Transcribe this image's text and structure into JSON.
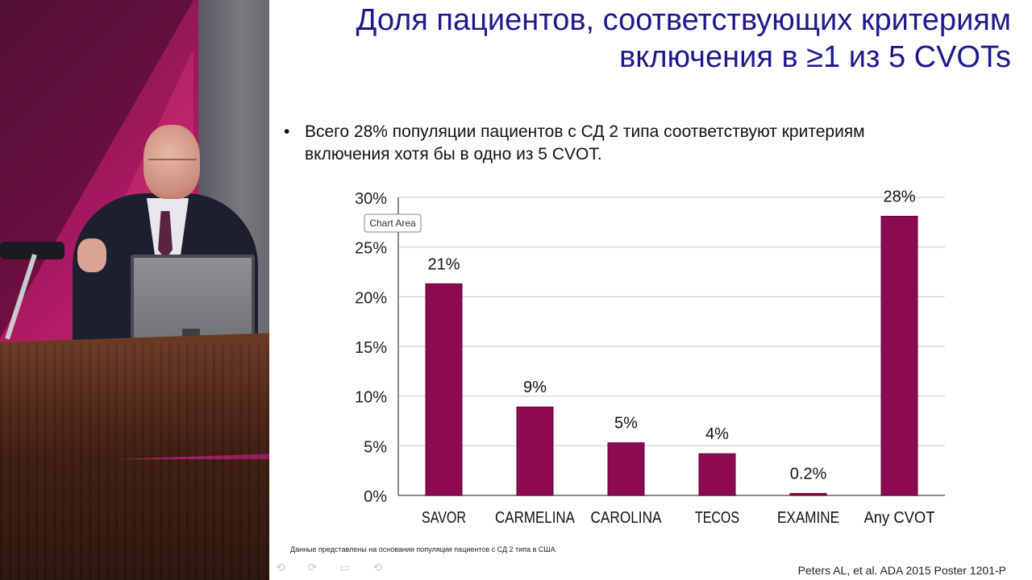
{
  "slide": {
    "title_line1": "Доля пациентов, соответствующих критериям",
    "title_line2": "включения в ≥1 из 5 CVOTs",
    "bullet_marker": "•",
    "bullet_text_line1": "Всего 28% популяции пациентов с СД 2 типа соответствуют критериям",
    "bullet_text_line2": "включения хотя бы в одно  из 5 CVOT.",
    "footnote": "Данные представлены на основании популяции пациентов с СД 2 типа в США.",
    "citation": "Peters AL, et al. ADA 2015 Poster 1201-P",
    "tooltip": "Chart Area",
    "controls": "⟲ ⟳ ▭ ⟲"
  },
  "colors": {
    "bar": "#8c0a50",
    "title": "#1e1a8c",
    "grid": "#cfcfcf"
  },
  "chart_data": {
    "type": "bar",
    "categories": [
      "SAVOR",
      "CARMELINA",
      "CAROLINA",
      "TECOS",
      "EXAMINE",
      "Any CVOT"
    ],
    "values": [
      21.3,
      8.9,
      5.3,
      4.2,
      0.2,
      28.1
    ],
    "data_labels": [
      "21%",
      "9%",
      "5%",
      "4%",
      "0.2%",
      "28%"
    ],
    "ylim": [
      0,
      30
    ],
    "yticks": [
      0,
      5,
      10,
      15,
      20,
      25,
      30
    ],
    "ytick_labels": [
      "0%",
      "5%",
      "10%",
      "15%",
      "20%",
      "25%",
      "30%"
    ],
    "grid": true,
    "title": "",
    "xlabel": "",
    "ylabel": ""
  }
}
